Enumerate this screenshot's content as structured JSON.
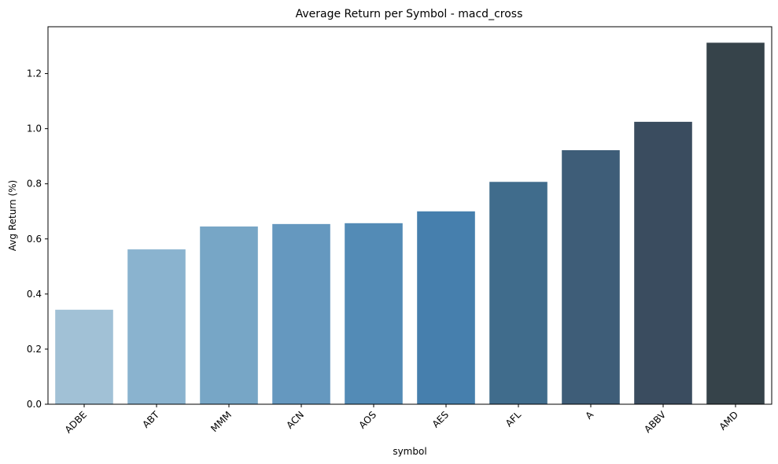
{
  "chart_data": {
    "type": "bar",
    "title": "Average Return per Symbol - macd_cross",
    "xlabel": "symbol",
    "ylabel": "Avg Return (%)",
    "categories": [
      "ADBE",
      "ABT",
      "MMM",
      "ACN",
      "AOS",
      "AES",
      "AFL",
      "A",
      "ABBV",
      "AMD"
    ],
    "values": [
      0.343,
      0.562,
      0.645,
      0.654,
      0.657,
      0.7,
      0.807,
      0.922,
      1.025,
      1.312
    ],
    "colors": [
      "#a1c1d6",
      "#8ab3cf",
      "#77a6c6",
      "#6598bf",
      "#538bb6",
      "#467fad",
      "#406c8c",
      "#3e5d78",
      "#3a4c5f",
      "#36434a"
    ],
    "ylim": [
      0,
      1.37
    ],
    "yticks": [
      "0.0",
      "0.2",
      "0.4",
      "0.6",
      "0.8",
      "1.0",
      "1.2"
    ],
    "grid": false,
    "legend": "none"
  }
}
